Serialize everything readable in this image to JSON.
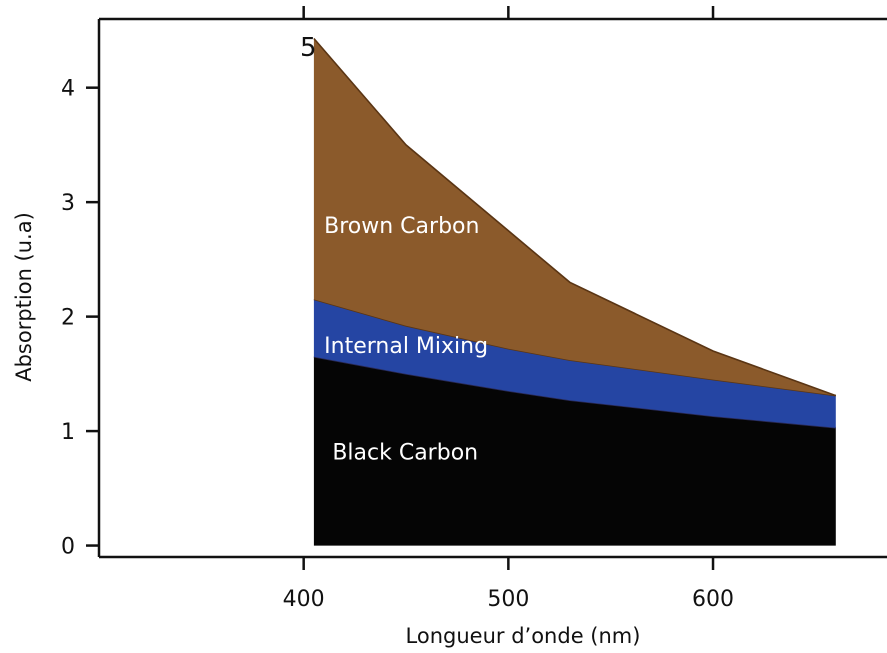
{
  "chart_data": {
    "type": "area",
    "xlabel": "Longueur d’onde (nm)",
    "ylabel": "Absorption (u.a)",
    "xlim": [
      300,
      685
    ],
    "ylim": [
      -0.1,
      4.6
    ],
    "xticks": [
      400,
      500,
      600
    ],
    "yticks": [
      0,
      1,
      2,
      3,
      4
    ],
    "grid": false,
    "legend": "none",
    "corner_label": "5",
    "series": [
      {
        "name": "Black Carbon",
        "color": "#050505",
        "x": [
          405,
          450,
          500,
          530,
          600,
          660
        ],
        "lower": [
          0,
          0,
          0,
          0,
          0,
          0
        ],
        "upper": [
          1.65,
          1.5,
          1.35,
          1.27,
          1.13,
          1.03
        ]
      },
      {
        "name": "Internal Mixing",
        "color": "#2545a3",
        "x": [
          405,
          450,
          500,
          530,
          600,
          660
        ],
        "lower": [
          1.65,
          1.5,
          1.35,
          1.27,
          1.13,
          1.03
        ],
        "upper": [
          2.15,
          1.92,
          1.72,
          1.62,
          1.45,
          1.31
        ]
      },
      {
        "name": "Brown Carbon",
        "color": "#8b5a2b",
        "x": [
          405,
          450,
          500,
          530,
          600,
          660
        ],
        "lower": [
          2.15,
          1.92,
          1.72,
          1.62,
          1.45,
          1.31
        ],
        "upper": [
          4.43,
          3.5,
          2.75,
          2.3,
          1.7,
          1.31
        ]
      }
    ],
    "annotations": [
      {
        "text": "Brown Carbon",
        "series": 2,
        "x": 410,
        "y": 2.8
      },
      {
        "text": "Internal Mixing",
        "series": 1,
        "x": 410,
        "y": 1.75
      },
      {
        "text": "Black Carbon",
        "series": 0,
        "x": 414,
        "y": 0.82
      }
    ]
  }
}
